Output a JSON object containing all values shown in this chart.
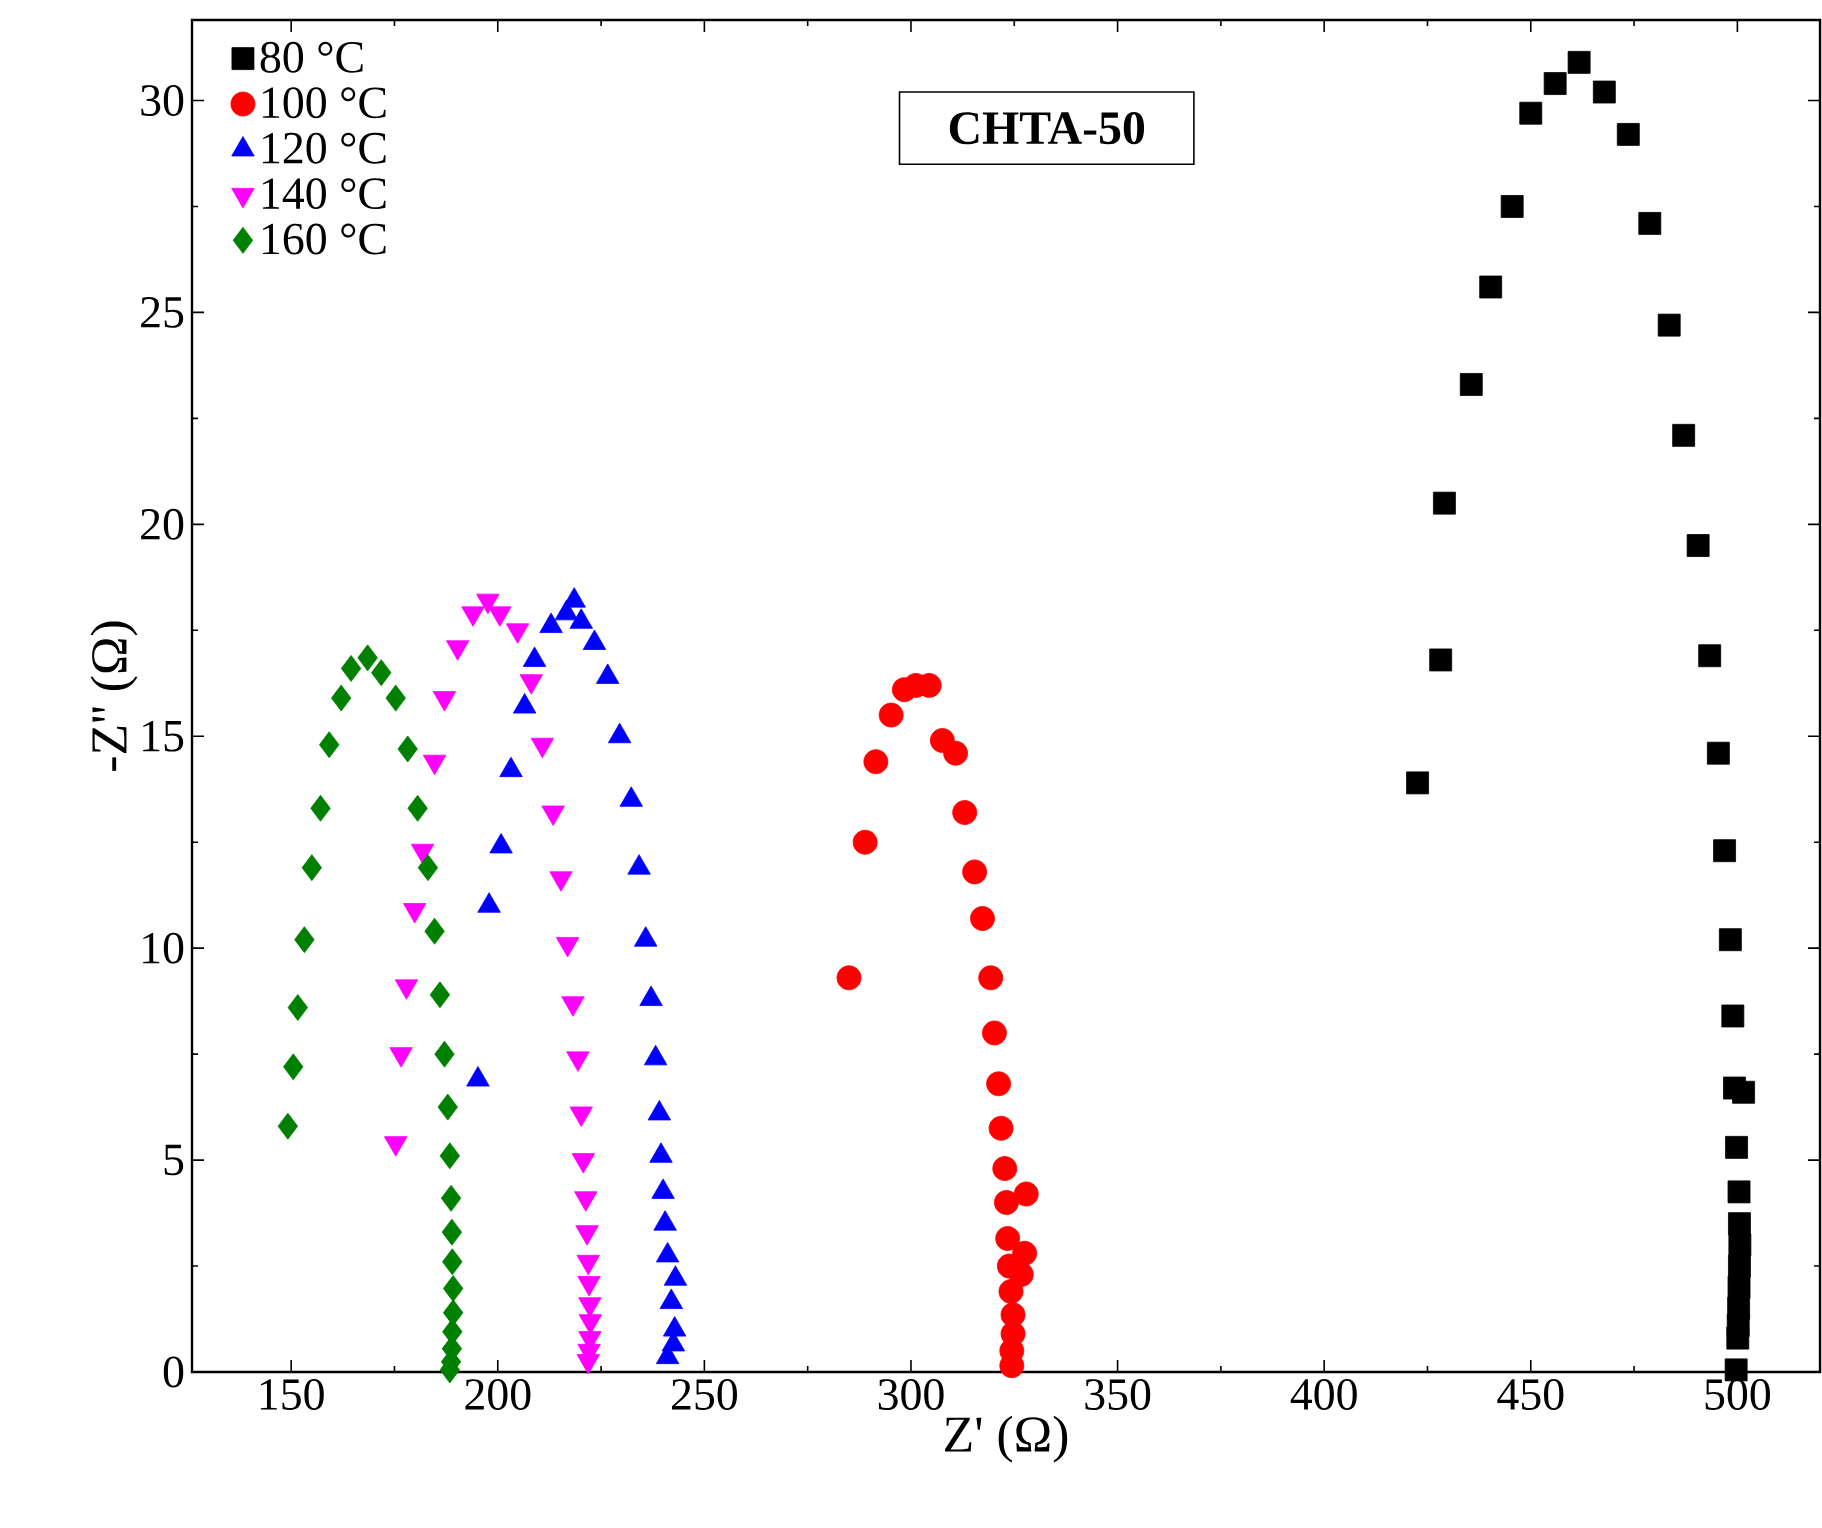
{
  "chart_data": {
    "type": "scatter",
    "xlabel": "Z' (Ω)",
    "ylabel": "-Z'' (Ω)",
    "annotations": [
      "**CHTA-50**"
    ],
    "xlim": [
      126,
      520
    ],
    "ylim": [
      0,
      31.9
    ],
    "xticks": [
      150,
      200,
      250,
      300,
      350,
      400,
      450,
      500
    ],
    "yticks": [
      0,
      5,
      10,
      15,
      20,
      25,
      30
    ],
    "grid": false,
    "legend": "top left",
    "series": [
      {
        "name": "80 °C",
        "color": "#000000",
        "marker": "square",
        "x": [
          422.6,
          428.2,
          429.1,
          435.6,
          440.3,
          445.5,
          450.0,
          455.9,
          461.7,
          467.8,
          473.6,
          478.8,
          483.5,
          487.0,
          490.5,
          493.3,
          495.4,
          496.9,
          498.3,
          498.9,
          499.3,
          501.5,
          499.8,
          500.4,
          500.5,
          500.6,
          500.5,
          500.4,
          500.3,
          500.2,
          500.1,
          500.0,
          499.9,
          499.8,
          499.7
        ],
        "values": [
          13.9,
          16.8,
          20.5,
          23.3,
          25.6,
          27.5,
          29.7,
          30.4,
          30.9,
          30.2,
          29.2,
          27.1,
          24.7,
          22.1,
          19.5,
          16.9,
          14.6,
          12.3,
          10.2,
          8.4,
          6.7,
          6.6,
          5.3,
          4.25,
          3.5,
          3.0,
          2.5,
          2.0,
          1.5,
          1.1,
          0.8,
          null,
          null,
          null,
          0.05
        ]
      },
      {
        "name": "100 °C",
        "color": "#ff0000",
        "marker": "circle",
        "x": [
          285.0,
          288.9,
          291.5,
          295.2,
          298.4,
          301.2,
          304.4,
          307.6,
          310.8,
          313.0,
          315.4,
          317.3,
          319.3,
          320.2,
          321.2,
          321.8,
          322.7,
          327.9,
          323.1,
          323.4,
          327.5,
          326.7,
          323.8,
          324.2,
          324.7,
          324.7,
          324.4,
          324.4
        ],
        "values": [
          9.3,
          12.5,
          14.4,
          15.5,
          16.1,
          16.2,
          16.2,
          14.9,
          14.6,
          13.2,
          11.8,
          10.7,
          9.3,
          8.0,
          6.8,
          5.75,
          4.8,
          4.2,
          4.0,
          3.15,
          2.8,
          2.3,
          2.5,
          1.9,
          1.35,
          0.9,
          0.5,
          0.15
        ]
      },
      {
        "name": "120 °C",
        "color": "#0000ff",
        "marker": "triangle",
        "x": [
          195.2,
          197.9,
          200.8,
          203.2,
          206.5,
          208.9,
          212.9,
          216.6,
          218.5,
          220.2,
          223.4,
          226.6,
          229.5,
          232.3,
          234.2,
          235.8,
          237.1,
          238.2,
          239.1,
          239.5,
          240.0,
          240.5,
          241.1,
          243.0,
          242.0,
          242.8,
          242.5,
          241.1
        ],
        "values": [
          6.9,
          11.0,
          12.4,
          14.2,
          15.7,
          16.8,
          17.6,
          17.9,
          18.2,
          17.7,
          17.2,
          16.4,
          15.0,
          13.5,
          11.9,
          10.2,
          8.8,
          7.4,
          6.1,
          5.1,
          4.25,
          3.5,
          2.75,
          2.2,
          1.65,
          1.0,
          0.65,
          0.35
        ]
      },
      {
        "name": "140 °C",
        "color": "#ff00ff",
        "marker": "triangle down",
        "x": [
          175.3,
          176.6,
          177.9,
          179.9,
          181.8,
          184.7,
          187.1,
          190.3,
          194.0,
          197.6,
          200.5,
          204.8,
          208.1,
          210.8,
          213.4,
          215.3,
          216.9,
          218.2,
          219.4,
          220.2,
          220.7,
          221.3,
          221.6,
          221.9,
          222.1,
          222.3,
          222.4,
          222.3,
          222.1,
          221.9
        ],
        "values": [
          5.4,
          7.5,
          9.1,
          10.9,
          12.3,
          14.4,
          15.9,
          17.1,
          17.9,
          18.2,
          17.9,
          17.5,
          16.3,
          14.8,
          13.2,
          11.65,
          10.1,
          8.7,
          7.4,
          6.1,
          5.0,
          4.1,
          3.3,
          2.6,
          2.1,
          1.6,
          1.2,
          0.8,
          0.5,
          0.26
        ]
      },
      {
        "name": "160 °C",
        "color": "#008000",
        "marker": "diamond",
        "x": [
          149.2,
          150.5,
          151.6,
          153.2,
          155.0,
          157.1,
          159.2,
          162.1,
          164.5,
          168.5,
          171.8,
          175.3,
          178.2,
          180.6,
          183.1,
          184.7,
          186.0,
          187.1,
          187.9,
          188.4,
          188.7,
          188.9,
          189.0,
          189.2,
          189.2,
          189.0,
          188.9,
          188.7,
          188.4
        ],
        "values": [
          5.8,
          7.2,
          8.6,
          10.2,
          11.9,
          13.3,
          14.8,
          15.9,
          16.6,
          16.85,
          16.5,
          15.9,
          14.7,
          13.3,
          11.9,
          10.4,
          8.9,
          7.5,
          6.25,
          5.1,
          4.1,
          3.3,
          2.6,
          1.97,
          1.4,
          0.95,
          0.55,
          0.24,
          0.05
        ]
      }
    ]
  }
}
